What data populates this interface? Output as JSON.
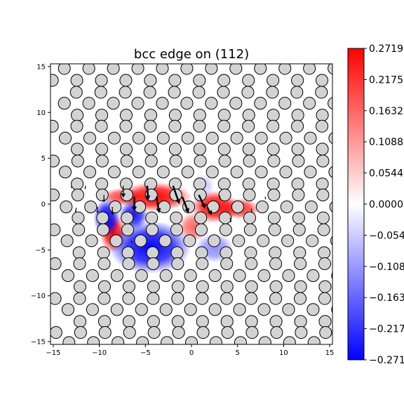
{
  "chart_data": {
    "type": "heatmap",
    "title": "bcc edge on (112)",
    "xlabel": "",
    "ylabel": "",
    "xlim": [
      -15.3,
      15.3
    ],
    "ylim": [
      -15.3,
      15.3
    ],
    "x_ticks": [
      -15,
      -10,
      -5,
      0,
      5,
      10,
      15
    ],
    "y_ticks": [
      -15,
      -10,
      -5,
      0,
      5,
      10,
      15
    ],
    "x_tick_labels": [
      "−15",
      "−10",
      "−5",
      "0",
      "5",
      "10",
      "15"
    ],
    "y_tick_labels": [
      "−15",
      "−10",
      "−5",
      "0",
      "5",
      "10",
      "15"
    ],
    "grid": false,
    "colormap": {
      "name": "bwr",
      "low_color": "#0000ff",
      "mid_color": "#ffffff",
      "high_color": "#ff0000",
      "vmin": -0.2719,
      "vmax": 0.2719
    },
    "colorbar_ticks": [
      0.2719,
      0.2175,
      0.1632,
      0.1088,
      0.0544,
      0.0,
      -0.0544,
      -0.1088,
      -0.1632,
      -0.2175,
      -0.2719
    ],
    "colorbar_tick_labels": [
      "0.2719",
      "0.2175",
      "0.1632",
      "0.1088",
      "0.0544",
      "0.0000",
      "−0.0544",
      "−0.1088",
      "−0.1632",
      "−0.2175",
      "−0.2719"
    ],
    "atom_style": {
      "fill": "#d3d3d3",
      "edge": "#000000",
      "radius": 0.5
    },
    "atom_lattice": {
      "rows": [
        {
          "y": 14.8,
          "x0": -13.8,
          "dx": 2.66
        },
        {
          "y": 13.5,
          "x0": -15.1,
          "dx": 2.66
        },
        {
          "y": 12.2,
          "x0": -12.5,
          "dx": 2.66
        },
        {
          "y": 11.0,
          "x0": -13.8,
          "dx": 2.66
        },
        {
          "y": 9.7,
          "x0": -12.4,
          "dx": 2.66
        },
        {
          "y": 8.5,
          "x0": -15.1,
          "dx": 2.66
        },
        {
          "y": 7.2,
          "x0": -13.7,
          "dx": 2.66
        },
        {
          "y": 6.0,
          "x0": -12.4,
          "dx": 2.66
        },
        {
          "y": 4.7,
          "x0": -15.0,
          "dx": 2.66
        },
        {
          "y": 3.5,
          "x0": -13.7,
          "dx": 2.66
        },
        {
          "y": 2.2,
          "x0": -12.4,
          "dx": 2.66
        },
        {
          "y": 1.0,
          "x0": -15.0,
          "dx": 2.66
        },
        {
          "y": -0.3,
          "x0": -13.6,
          "dx": 2.66
        },
        {
          "y": -1.5,
          "x0": -12.3,
          "dx": 2.66
        },
        {
          "y": -2.8,
          "x0": -14.9,
          "dx": 2.66
        },
        {
          "y": -4.0,
          "x0": -13.5,
          "dx": 2.66
        },
        {
          "y": -5.3,
          "x0": -12.2,
          "dx": 2.66
        },
        {
          "y": -6.5,
          "x0": -14.8,
          "dx": 2.66
        },
        {
          "y": -7.8,
          "x0": -13.4,
          "dx": 2.66
        },
        {
          "y": -9.0,
          "x0": -12.1,
          "dx": 2.66
        },
        {
          "y": -10.3,
          "x0": -14.8,
          "dx": 2.66
        },
        {
          "y": -11.5,
          "x0": -13.4,
          "dx": 2.66
        },
        {
          "y": -12.8,
          "x0": -12.1,
          "dx": 2.66
        },
        {
          "y": -14.0,
          "x0": -14.7,
          "dx": 2.66
        },
        {
          "y": -15.1,
          "x0": -13.3,
          "dx": 2.66
        }
      ]
    },
    "field_blobs": [
      {
        "x": -4.0,
        "y": 0.8,
        "sx": 2.5,
        "sy": 1.0,
        "value": 0.27
      },
      {
        "x": -7.5,
        "y": 0.8,
        "sx": 1.4,
        "sy": 0.6,
        "value": 0.2
      },
      {
        "x": 2.5,
        "y": -0.3,
        "sx": 1.6,
        "sy": 1.1,
        "value": 0.27
      },
      {
        "x": 5.2,
        "y": -0.5,
        "sx": 1.4,
        "sy": 0.7,
        "value": 0.22
      },
      {
        "x": 0.2,
        "y": -2.5,
        "sx": 1.0,
        "sy": 1.0,
        "value": 0.16
      },
      {
        "x": -8.5,
        "y": -3.2,
        "sx": 0.9,
        "sy": 1.3,
        "value": 0.27
      },
      {
        "x": -4.5,
        "y": -4.7,
        "sx": 2.8,
        "sy": 1.8,
        "value": -0.27
      },
      {
        "x": -9.2,
        "y": -1.5,
        "sx": 0.9,
        "sy": 1.3,
        "value": -0.27
      },
      {
        "x": -6.3,
        "y": -1.2,
        "sx": 1.0,
        "sy": 1.0,
        "value": -0.25
      },
      {
        "x": 2.5,
        "y": -4.8,
        "sx": 1.3,
        "sy": 1.0,
        "value": -0.12
      },
      {
        "x": 1.2,
        "y": 2.0,
        "sx": 0.8,
        "sy": 0.8,
        "value": -0.06
      }
    ],
    "arrows": [
      {
        "x": -7.4,
        "y": 2.0,
        "dx": 0.0,
        "dy": -1.3
      },
      {
        "x": -6.2,
        "y": 0.8,
        "dx": 0.0,
        "dy": -1.6
      },
      {
        "x": -4.8,
        "y": 2.0,
        "dx": 0.1,
        "dy": -1.6
      },
      {
        "x": -3.8,
        "y": 0.8,
        "dx": 0.3,
        "dy": -1.8
      },
      {
        "x": -2.0,
        "y": 2.0,
        "dx": 0.7,
        "dy": -2.0
      },
      {
        "x": -1.0,
        "y": 0.8,
        "dx": 0.7,
        "dy": -1.8
      },
      {
        "x": 0.8,
        "y": 1.0,
        "dx": 0.7,
        "dy": -1.5
      },
      {
        "x": 1.6,
        "y": 0.0,
        "dx": 0.6,
        "dy": -1.2
      },
      {
        "x": -9.5,
        "y": 1.0,
        "dx": 0.0,
        "dy": -0.8
      },
      {
        "x": -10.2,
        "y": -0.3,
        "dx": 0.0,
        "dy": -0.7
      },
      {
        "x": -8.6,
        "y": -0.3,
        "dx": 0.05,
        "dy": -0.9
      },
      {
        "x": -12.5,
        "y": -0.4,
        "dx": -0.1,
        "dy": -0.5
      },
      {
        "x": -11.5,
        "y": 2.0,
        "dx": -0.05,
        "dy": -0.4
      },
      {
        "x": 3.0,
        "y": 1.0,
        "dx": 0.15,
        "dy": -0.5
      },
      {
        "x": 4.2,
        "y": -1.5,
        "dx": 0.1,
        "dy": -0.5
      },
      {
        "x": 6.5,
        "y": -0.5,
        "dx": 0.05,
        "dy": -0.4
      },
      {
        "x": -6.5,
        "y": -4.0,
        "dx": 0.05,
        "dy": -0.3
      },
      {
        "x": 8.0,
        "y": 0.8,
        "dx": 0.05,
        "dy": -0.3
      },
      {
        "x": -13.0,
        "y": 2.0,
        "dx": -0.05,
        "dy": -0.3
      }
    ]
  }
}
